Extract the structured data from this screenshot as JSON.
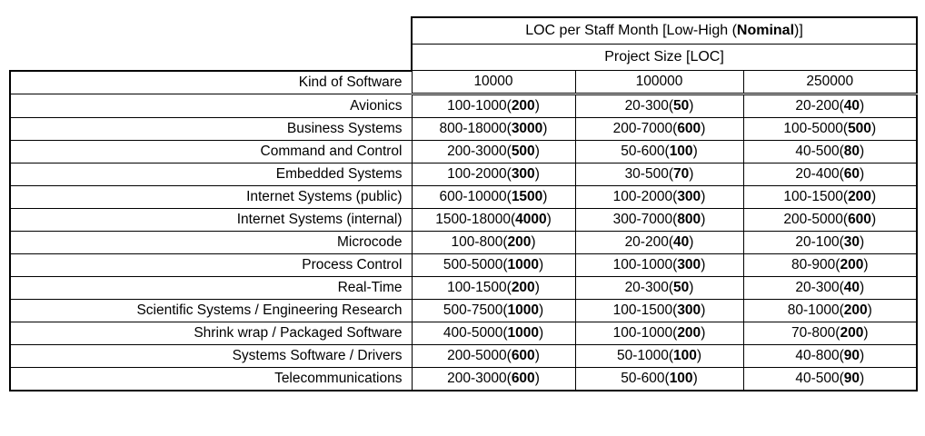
{
  "table": {
    "header": {
      "title_prefix": "LOC per Staff Month [Low-High (",
      "title_bold": "Nominal",
      "title_suffix": ")]",
      "subtitle": "Project Size [LOC]",
      "kind_label": "Kind of Software",
      "sizes": [
        "10000",
        "100000",
        "250000"
      ]
    },
    "rows": [
      {
        "kind": "Avionics",
        "cells": [
          {
            "range": "100-1000",
            "nominal": "200"
          },
          {
            "range": "20-300",
            "nominal": "50"
          },
          {
            "range": "20-200",
            "nominal": "40"
          }
        ]
      },
      {
        "kind": "Business Systems",
        "cells": [
          {
            "range": "800-18000",
            "nominal": "3000"
          },
          {
            "range": "200-7000",
            "nominal": "600"
          },
          {
            "range": "100-5000",
            "nominal": "500"
          }
        ]
      },
      {
        "kind": "Command and Control",
        "cells": [
          {
            "range": "200-3000",
            "nominal": "500"
          },
          {
            "range": "50-600",
            "nominal": "100"
          },
          {
            "range": "40-500",
            "nominal": "80"
          }
        ]
      },
      {
        "kind": "Embedded Systems",
        "cells": [
          {
            "range": "100-2000",
            "nominal": "300"
          },
          {
            "range": "30-500",
            "nominal": "70"
          },
          {
            "range": "20-400",
            "nominal": "60"
          }
        ]
      },
      {
        "kind": "Internet Systems (public)",
        "cells": [
          {
            "range": "600-10000",
            "nominal": "1500"
          },
          {
            "range": "100-2000",
            "nominal": "300"
          },
          {
            "range": "100-1500",
            "nominal": "200"
          }
        ]
      },
      {
        "kind": "Internet Systems (internal)",
        "cells": [
          {
            "range": "1500-18000",
            "nominal": "4000"
          },
          {
            "range": "300-7000",
            "nominal": "800"
          },
          {
            "range": "200-5000",
            "nominal": "600"
          }
        ]
      },
      {
        "kind": "Microcode",
        "cells": [
          {
            "range": "100-800",
            "nominal": "200"
          },
          {
            "range": "20-200",
            "nominal": "40"
          },
          {
            "range": "20-100",
            "nominal": "30"
          }
        ]
      },
      {
        "kind": "Process Control",
        "cells": [
          {
            "range": "500-5000",
            "nominal": "1000"
          },
          {
            "range": "100-1000",
            "nominal": "300"
          },
          {
            "range": "80-900",
            "nominal": "200"
          }
        ]
      },
      {
        "kind": "Real-Time",
        "cells": [
          {
            "range": "100-1500",
            "nominal": "200"
          },
          {
            "range": "20-300",
            "nominal": "50"
          },
          {
            "range": "20-300",
            "nominal": "40"
          }
        ]
      },
      {
        "kind": "Scientific Systems / Engineering Research",
        "cells": [
          {
            "range": "500-7500",
            "nominal": "1000"
          },
          {
            "range": "100-1500",
            "nominal": "300"
          },
          {
            "range": "80-1000",
            "nominal": "200"
          }
        ]
      },
      {
        "kind": "Shrink wrap / Packaged Software",
        "cells": [
          {
            "range": "400-5000",
            "nominal": "1000"
          },
          {
            "range": "100-1000",
            "nominal": "200"
          },
          {
            "range": "70-800",
            "nominal": "200"
          }
        ]
      },
      {
        "kind": "Systems Software / Drivers",
        "cells": [
          {
            "range": "200-5000",
            "nominal": "600"
          },
          {
            "range": "50-1000",
            "nominal": "100"
          },
          {
            "range": "40-800",
            "nominal": "90"
          }
        ]
      },
      {
        "kind": "Telecommunications",
        "cells": [
          {
            "range": "200-3000",
            "nominal": "600"
          },
          {
            "range": "50-600",
            "nominal": "100"
          },
          {
            "range": "40-500",
            "nominal": "90"
          }
        ]
      }
    ]
  }
}
